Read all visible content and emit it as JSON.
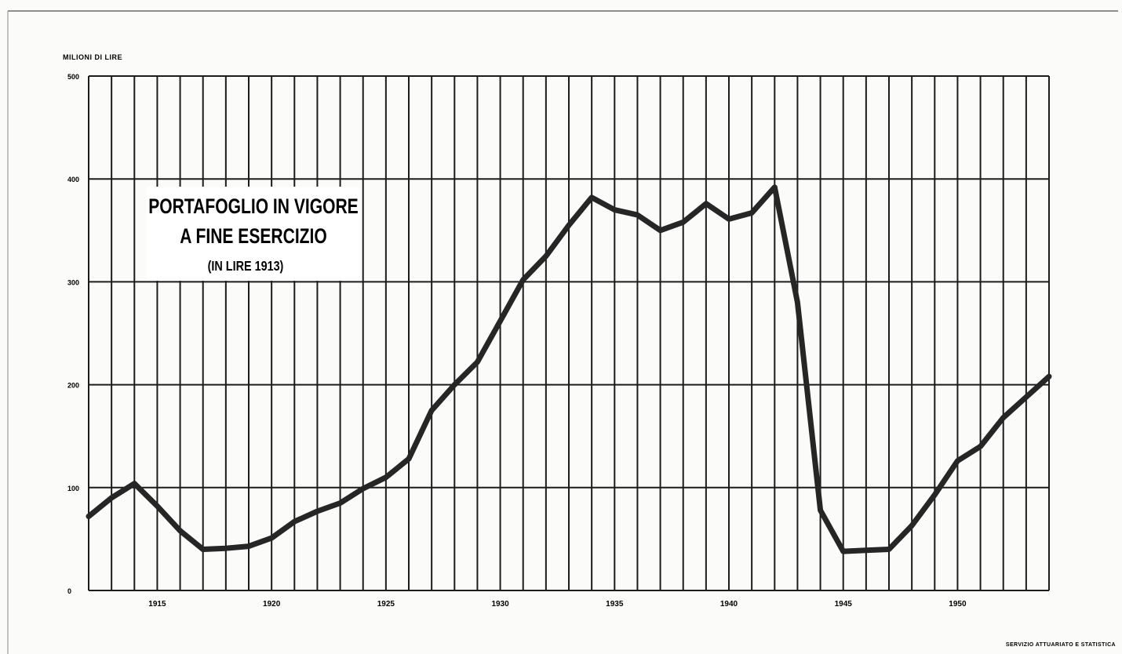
{
  "chart_data": {
    "type": "line",
    "title": [
      "PORTAFOGLIO IN VIGORE",
      "A FINE ESERCIZIO"
    ],
    "subtitle": "(IN LIRE 1913)",
    "ylabel": "MILIONI DI LIRE",
    "xlabel": "",
    "ylim": [
      0,
      500
    ],
    "xlim": [
      1912,
      1954
    ],
    "y_ticks": [
      "0",
      "100",
      "200",
      "300",
      "400",
      "500"
    ],
    "x_tick_labels": [
      "1915",
      "1920",
      "1925",
      "1930",
      "1935",
      "1940",
      "1945",
      "1950"
    ],
    "x_tick_years": [
      1915,
      1920,
      1925,
      1930,
      1935,
      1940,
      1945,
      1950
    ],
    "grid": true,
    "series": [
      {
        "x": [
          1912,
          1913,
          1914,
          1915,
          1916,
          1917,
          1918,
          1919,
          1920,
          1921,
          1922,
          1923,
          1924,
          1925,
          1926,
          1927,
          1928,
          1929,
          1930,
          1931,
          1932,
          1933,
          1934,
          1935,
          1936,
          1937,
          1938,
          1939,
          1940,
          1941,
          1942,
          1943,
          1944,
          1945,
          1946,
          1947,
          1948,
          1949,
          1950,
          1951,
          1952,
          1953,
          1954
        ],
        "values": [
          72,
          90,
          104,
          82,
          58,
          40,
          41,
          43,
          51,
          67,
          77,
          85,
          99,
          110,
          128,
          175,
          200,
          222,
          262,
          302,
          325,
          355,
          382,
          370,
          365,
          350,
          358,
          376,
          361,
          367,
          392,
          280,
          78,
          38,
          39,
          40,
          63,
          93,
          126,
          140,
          168,
          188,
          208
        ]
      }
    ]
  },
  "footer": {
    "credit": "SERVIZIO ATTUARIATO E STATISTICA"
  }
}
